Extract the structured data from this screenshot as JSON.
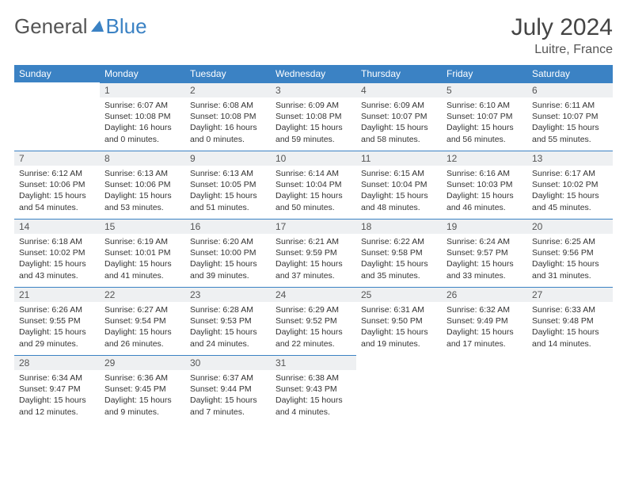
{
  "brand": {
    "part1": "General",
    "part2": "Blue"
  },
  "title": "July 2024",
  "location": "Luitre, France",
  "colors": {
    "accent": "#3b82c4",
    "daynum_bg": "#eef0f2",
    "text": "#333333",
    "muted": "#555555",
    "background": "#ffffff"
  },
  "weekdays": [
    "Sunday",
    "Monday",
    "Tuesday",
    "Wednesday",
    "Thursday",
    "Friday",
    "Saturday"
  ],
  "weeks": [
    [
      null,
      {
        "n": 1,
        "sr": "6:07 AM",
        "ss": "10:08 PM",
        "dl": "16 hours and 0 minutes."
      },
      {
        "n": 2,
        "sr": "6:08 AM",
        "ss": "10:08 PM",
        "dl": "16 hours and 0 minutes."
      },
      {
        "n": 3,
        "sr": "6:09 AM",
        "ss": "10:08 PM",
        "dl": "15 hours and 59 minutes."
      },
      {
        "n": 4,
        "sr": "6:09 AM",
        "ss": "10:07 PM",
        "dl": "15 hours and 58 minutes."
      },
      {
        "n": 5,
        "sr": "6:10 AM",
        "ss": "10:07 PM",
        "dl": "15 hours and 56 minutes."
      },
      {
        "n": 6,
        "sr": "6:11 AM",
        "ss": "10:07 PM",
        "dl": "15 hours and 55 minutes."
      }
    ],
    [
      {
        "n": 7,
        "sr": "6:12 AM",
        "ss": "10:06 PM",
        "dl": "15 hours and 54 minutes."
      },
      {
        "n": 8,
        "sr": "6:13 AM",
        "ss": "10:06 PM",
        "dl": "15 hours and 53 minutes."
      },
      {
        "n": 9,
        "sr": "6:13 AM",
        "ss": "10:05 PM",
        "dl": "15 hours and 51 minutes."
      },
      {
        "n": 10,
        "sr": "6:14 AM",
        "ss": "10:04 PM",
        "dl": "15 hours and 50 minutes."
      },
      {
        "n": 11,
        "sr": "6:15 AM",
        "ss": "10:04 PM",
        "dl": "15 hours and 48 minutes."
      },
      {
        "n": 12,
        "sr": "6:16 AM",
        "ss": "10:03 PM",
        "dl": "15 hours and 46 minutes."
      },
      {
        "n": 13,
        "sr": "6:17 AM",
        "ss": "10:02 PM",
        "dl": "15 hours and 45 minutes."
      }
    ],
    [
      {
        "n": 14,
        "sr": "6:18 AM",
        "ss": "10:02 PM",
        "dl": "15 hours and 43 minutes."
      },
      {
        "n": 15,
        "sr": "6:19 AM",
        "ss": "10:01 PM",
        "dl": "15 hours and 41 minutes."
      },
      {
        "n": 16,
        "sr": "6:20 AM",
        "ss": "10:00 PM",
        "dl": "15 hours and 39 minutes."
      },
      {
        "n": 17,
        "sr": "6:21 AM",
        "ss": "9:59 PM",
        "dl": "15 hours and 37 minutes."
      },
      {
        "n": 18,
        "sr": "6:22 AM",
        "ss": "9:58 PM",
        "dl": "15 hours and 35 minutes."
      },
      {
        "n": 19,
        "sr": "6:24 AM",
        "ss": "9:57 PM",
        "dl": "15 hours and 33 minutes."
      },
      {
        "n": 20,
        "sr": "6:25 AM",
        "ss": "9:56 PM",
        "dl": "15 hours and 31 minutes."
      }
    ],
    [
      {
        "n": 21,
        "sr": "6:26 AM",
        "ss": "9:55 PM",
        "dl": "15 hours and 29 minutes."
      },
      {
        "n": 22,
        "sr": "6:27 AM",
        "ss": "9:54 PM",
        "dl": "15 hours and 26 minutes."
      },
      {
        "n": 23,
        "sr": "6:28 AM",
        "ss": "9:53 PM",
        "dl": "15 hours and 24 minutes."
      },
      {
        "n": 24,
        "sr": "6:29 AM",
        "ss": "9:52 PM",
        "dl": "15 hours and 22 minutes."
      },
      {
        "n": 25,
        "sr": "6:31 AM",
        "ss": "9:50 PM",
        "dl": "15 hours and 19 minutes."
      },
      {
        "n": 26,
        "sr": "6:32 AM",
        "ss": "9:49 PM",
        "dl": "15 hours and 17 minutes."
      },
      {
        "n": 27,
        "sr": "6:33 AM",
        "ss": "9:48 PM",
        "dl": "15 hours and 14 minutes."
      }
    ],
    [
      {
        "n": 28,
        "sr": "6:34 AM",
        "ss": "9:47 PM",
        "dl": "15 hours and 12 minutes."
      },
      {
        "n": 29,
        "sr": "6:36 AM",
        "ss": "9:45 PM",
        "dl": "15 hours and 9 minutes."
      },
      {
        "n": 30,
        "sr": "6:37 AM",
        "ss": "9:44 PM",
        "dl": "15 hours and 7 minutes."
      },
      {
        "n": 31,
        "sr": "6:38 AM",
        "ss": "9:43 PM",
        "dl": "15 hours and 4 minutes."
      },
      null,
      null,
      null
    ]
  ],
  "labels": {
    "sunrise": "Sunrise:",
    "sunset": "Sunset:",
    "daylight": "Daylight:"
  }
}
